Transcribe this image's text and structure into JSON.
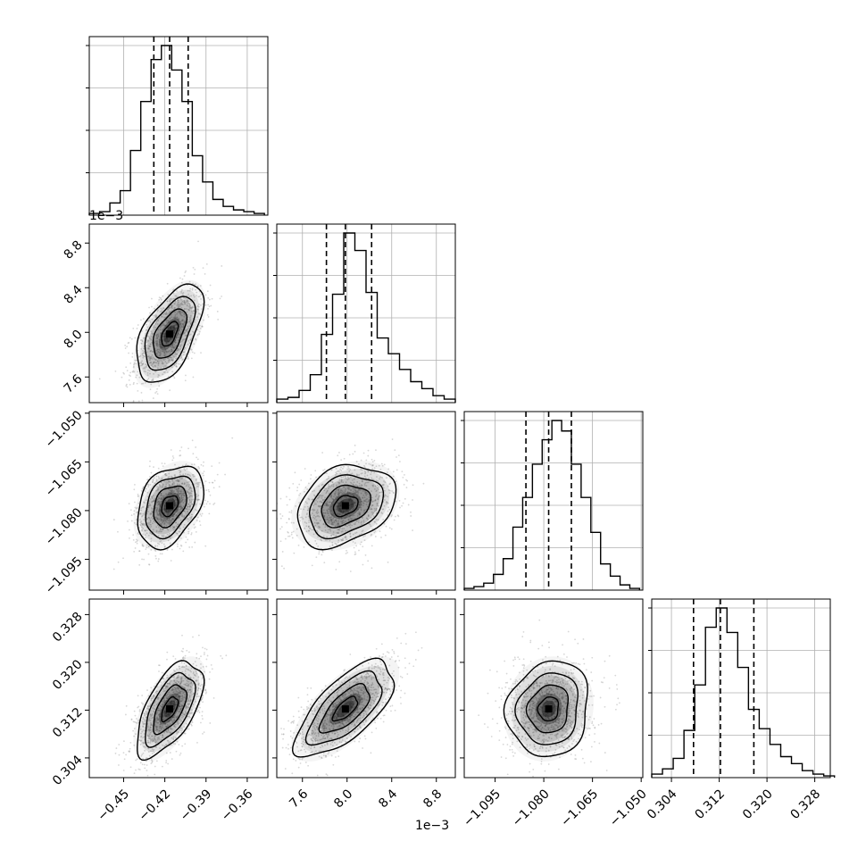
{
  "chart_data": {
    "type": "scatter",
    "colors": {
      "contour": "#000000",
      "quantile": "#000000",
      "grid": "#b0b0b0",
      "points": "#8c8c8c"
    },
    "grid": true,
    "parameters": [
      {
        "ticks": [
          -0.45,
          -0.42,
          -0.39,
          -0.36
        ],
        "tick_labels": [
          "−0.45",
          "−0.42",
          "−0.39",
          "−0.36"
        ],
        "range": [
          -0.475,
          -0.345
        ],
        "offset_text": ""
      },
      {
        "ticks": [
          7.6,
          8.0,
          8.4,
          8.8
        ],
        "tick_labels": [
          "7.6",
          "8.0",
          "8.4",
          "8.8"
        ],
        "range": [
          7.37,
          8.97
        ],
        "offset_text": "1e−3"
      },
      {
        "ticks": [
          -1.095,
          -1.08,
          -1.065,
          -1.05
        ],
        "tick_labels": [
          "−1.095",
          "−1.080",
          "−1.065",
          "−1.050"
        ],
        "range": [
          -1.1045,
          -1.0495
        ],
        "offset_text": ""
      },
      {
        "ticks": [
          0.304,
          0.312,
          0.32,
          0.328
        ],
        "tick_labels": [
          "0.304",
          "0.312",
          "0.320",
          "0.328"
        ],
        "range": [
          0.3007,
          0.3306
        ],
        "offset_text": ""
      }
    ],
    "marginals": [
      {
        "bins": [
          -0.475,
          -0.4675,
          -0.46,
          -0.4525,
          -0.445,
          -0.4375,
          -0.43,
          -0.4225,
          -0.415,
          -0.4075,
          -0.4,
          -0.3925,
          -0.385,
          -0.3775,
          -0.37,
          -0.3625,
          -0.355,
          -0.3475
        ],
        "counts": [
          0.01,
          0.02,
          0.07,
          0.14,
          0.37,
          0.65,
          0.89,
          0.97,
          0.83,
          0.65,
          0.34,
          0.19,
          0.09,
          0.05,
          0.03,
          0.02,
          0.01
        ],
        "quantiles": [
          -0.428,
          -0.4165,
          -0.403
        ]
      },
      {
        "bins": [
          7.37,
          7.47,
          7.57,
          7.67,
          7.77,
          7.87,
          7.97,
          8.07,
          8.17,
          8.27,
          8.37,
          8.47,
          8.57,
          8.67,
          8.77,
          8.87,
          8.97
        ],
        "counts": [
          0.02,
          0.03,
          0.07,
          0.16,
          0.39,
          0.62,
          0.97,
          0.87,
          0.63,
          0.37,
          0.28,
          0.19,
          0.12,
          0.08,
          0.04,
          0.02
        ],
        "quantiles": [
          7.815,
          7.985,
          8.22
        ]
      },
      {
        "bins": [
          -1.1045,
          -1.1015,
          -1.0985,
          -1.0955,
          -1.0925,
          -1.0895,
          -1.0865,
          -1.0835,
          -1.0805,
          -1.0775,
          -1.0745,
          -1.0715,
          -1.0685,
          -1.0655,
          -1.0625,
          -1.0595,
          -1.0565,
          -1.0535,
          -1.0505
        ],
        "counts": [
          0.01,
          0.02,
          0.04,
          0.09,
          0.18,
          0.36,
          0.53,
          0.72,
          0.86,
          0.97,
          0.91,
          0.72,
          0.53,
          0.33,
          0.15,
          0.08,
          0.03,
          0.01
        ],
        "quantiles": [
          -1.0855,
          -1.0785,
          -1.0715
        ]
      },
      {
        "bins": [
          0.3007,
          0.3025,
          0.3043,
          0.3061,
          0.3079,
          0.3097,
          0.3115,
          0.3133,
          0.3151,
          0.3169,
          0.3187,
          0.3205,
          0.3223,
          0.3241,
          0.3259,
          0.3277,
          0.3295,
          0.3313
        ],
        "counts": [
          0.02,
          0.05,
          0.11,
          0.27,
          0.53,
          0.86,
          0.97,
          0.83,
          0.63,
          0.39,
          0.28,
          0.19,
          0.12,
          0.08,
          0.04,
          0.02,
          0.01
        ],
        "quantiles": [
          0.3077,
          0.3122,
          0.3178
        ]
      }
    ],
    "joint": [
      {
        "x_param": 0,
        "y_param": 1,
        "mean": [
          -0.4165,
          7.985
        ],
        "sd": [
          0.012,
          0.22
        ],
        "corr": 0.55
      },
      {
        "x_param": 0,
        "y_param": 2,
        "mean": [
          -0.4165,
          -1.0785
        ],
        "sd": [
          0.012,
          0.0063
        ],
        "corr": 0.35
      },
      {
        "x_param": 1,
        "y_param": 2,
        "mean": [
          7.985,
          -1.0785
        ],
        "sd": [
          0.22,
          0.0063
        ],
        "corr": 0.3
      },
      {
        "x_param": 0,
        "y_param": 3,
        "mean": [
          -0.4165,
          0.3122
        ],
        "sd": [
          0.012,
          0.004
        ],
        "corr": 0.6
      },
      {
        "x_param": 1,
        "y_param": 3,
        "mean": [
          7.985,
          0.3122
        ],
        "sd": [
          0.22,
          0.004
        ],
        "corr": 0.68
      },
      {
        "x_param": 2,
        "y_param": 3,
        "mean": [
          -1.0785,
          0.3122
        ],
        "sd": [
          0.0063,
          0.004
        ],
        "corr": 0.1
      }
    ],
    "contour_levels_sigma": [
      0.5,
      1.0,
      1.5,
      2.0
    ]
  }
}
